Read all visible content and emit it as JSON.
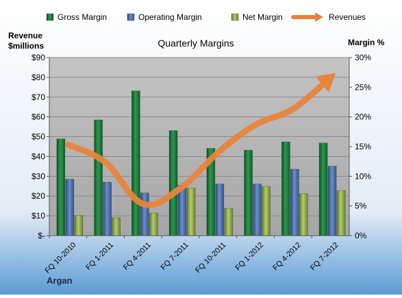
{
  "chart_data": {
    "type": "bar",
    "title": "Quarterly Margins",
    "categories": [
      "FQ 10-2010",
      "FQ 1-2011",
      "FQ 4-2011",
      "FQ 7-2011",
      "FQ 10-2011",
      "FQ 1-2012",
      "FQ 4-2012",
      "FQ 7-2012"
    ],
    "series": [
      {
        "name": "Gross Margin",
        "type": "bar",
        "axis": "right",
        "values": [
          16.3,
          19.5,
          24.4,
          17.7,
          14.7,
          14.4,
          15.8,
          15.6
        ],
        "color": "#1f7a3e"
      },
      {
        "name": "Operating Margin",
        "type": "bar",
        "axis": "right",
        "values": [
          9.5,
          9.0,
          7.2,
          8.5,
          8.7,
          8.7,
          11.2,
          11.7
        ],
        "color": "#4a6fa8"
      },
      {
        "name": "Net Margin",
        "type": "bar",
        "axis": "right",
        "values": [
          3.4,
          3.0,
          3.8,
          8.0,
          4.6,
          8.3,
          7.1,
          7.6
        ],
        "color": "#8fa84a"
      },
      {
        "name": "Revenues",
        "type": "line",
        "axis": "left",
        "values": [
          46,
          37,
          16,
          24,
          42,
          56,
          64,
          80
        ],
        "color": "#e8843c"
      }
    ],
    "y_left": {
      "label_line1": "Revenue",
      "label_line2": "$millions",
      "min": 0,
      "max": 90,
      "ticks": [
        "$-",
        "$10",
        "$20",
        "$30",
        "$40",
        "$50",
        "$60",
        "$70",
        "$80",
        "$90"
      ]
    },
    "y_right": {
      "label": "Margin %",
      "min": 0,
      "max": 30,
      "ticks": [
        "0%",
        "5%",
        "10%",
        "15%",
        "20%",
        "25%",
        "30%"
      ]
    },
    "legend_position": "top",
    "grid": true,
    "annotation": "Argan"
  }
}
